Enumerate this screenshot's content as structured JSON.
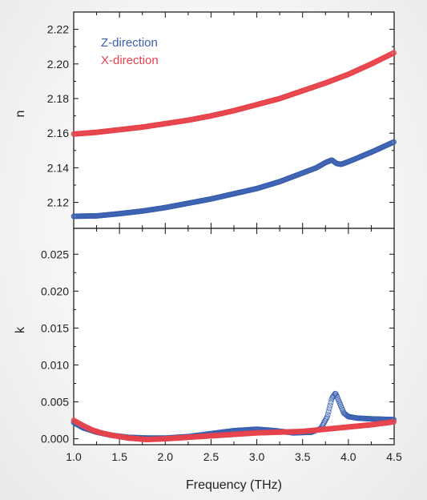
{
  "chart_data": [
    {
      "type": "scatter",
      "panel": "top",
      "ylabel": "n",
      "xlim": [
        1.0,
        4.5
      ],
      "ylim": [
        2.105,
        2.23
      ],
      "yticks": [
        "2.12",
        "2.14",
        "2.16",
        "2.18",
        "2.20",
        "2.22"
      ],
      "legend_position": "top-left",
      "series": [
        {
          "name": "Z-direction",
          "color": "#3a5fb0",
          "x": [
            1.0,
            1.25,
            1.5,
            1.75,
            2.0,
            2.25,
            2.5,
            2.75,
            3.0,
            3.25,
            3.5,
            3.65,
            3.75,
            3.82,
            3.87,
            3.92,
            4.0,
            4.25,
            4.5
          ],
          "y": [
            2.112,
            2.1122,
            2.1135,
            2.115,
            2.117,
            2.1195,
            2.122,
            2.125,
            2.128,
            2.132,
            2.137,
            2.14,
            2.143,
            2.1445,
            2.1425,
            2.142,
            2.1435,
            2.149,
            2.155
          ]
        },
        {
          "name": "X-direction",
          "color": "#e8424a",
          "x": [
            1.0,
            1.25,
            1.5,
            1.75,
            2.0,
            2.25,
            2.5,
            2.75,
            3.0,
            3.25,
            3.5,
            3.75,
            4.0,
            4.25,
            4.5
          ],
          "y": [
            2.1595,
            2.1605,
            2.162,
            2.1635,
            2.1655,
            2.1675,
            2.17,
            2.173,
            2.1765,
            2.18,
            2.1845,
            2.189,
            2.194,
            2.2,
            2.2065
          ]
        }
      ]
    },
    {
      "type": "scatter",
      "panel": "bottom",
      "ylabel": "k",
      "xlabel": "Frequency (THz)",
      "xlim": [
        1.0,
        4.5
      ],
      "ylim": [
        -0.0008,
        0.0285
      ],
      "xticks": [
        "1.0",
        "1.5",
        "2.0",
        "2.5",
        "3.0",
        "3.5",
        "4.0",
        "4.5"
      ],
      "yticks": [
        "0.000",
        "0.005",
        "0.010",
        "0.015",
        "0.020",
        "0.025"
      ],
      "series": [
        {
          "name": "Z-direction",
          "color": "#3a5fb0",
          "x": [
            1.0,
            1.1,
            1.25,
            1.4,
            1.6,
            1.8,
            2.0,
            2.25,
            2.5,
            2.75,
            3.0,
            3.2,
            3.4,
            3.6,
            3.7,
            3.77,
            3.82,
            3.86,
            3.9,
            3.95,
            4.0,
            4.1,
            4.25,
            4.5
          ],
          "y": [
            0.0022,
            0.0015,
            0.0009,
            0.0005,
            0.0002,
            0.0001,
            0.0001,
            0.0003,
            0.0007,
            0.0011,
            0.0013,
            0.0011,
            0.0008,
            0.0009,
            0.0014,
            0.003,
            0.0055,
            0.0062,
            0.005,
            0.0035,
            0.003,
            0.0028,
            0.0027,
            0.0026
          ]
        },
        {
          "name": "X-direction",
          "color": "#e8424a",
          "x": [
            1.0,
            1.1,
            1.2,
            1.3,
            1.45,
            1.6,
            1.8,
            2.0,
            2.25,
            2.5,
            2.75,
            3.0,
            3.25,
            3.5,
            3.75,
            4.0,
            4.25,
            4.5
          ],
          "y": [
            0.0025,
            0.0018,
            0.0012,
            0.0008,
            0.0004,
            0.0001,
            -0.0001,
            0.0,
            0.0002,
            0.0004,
            0.0006,
            0.0008,
            0.0009,
            0.001,
            0.0013,
            0.0016,
            0.0019,
            0.0023
          ]
        }
      ]
    }
  ]
}
